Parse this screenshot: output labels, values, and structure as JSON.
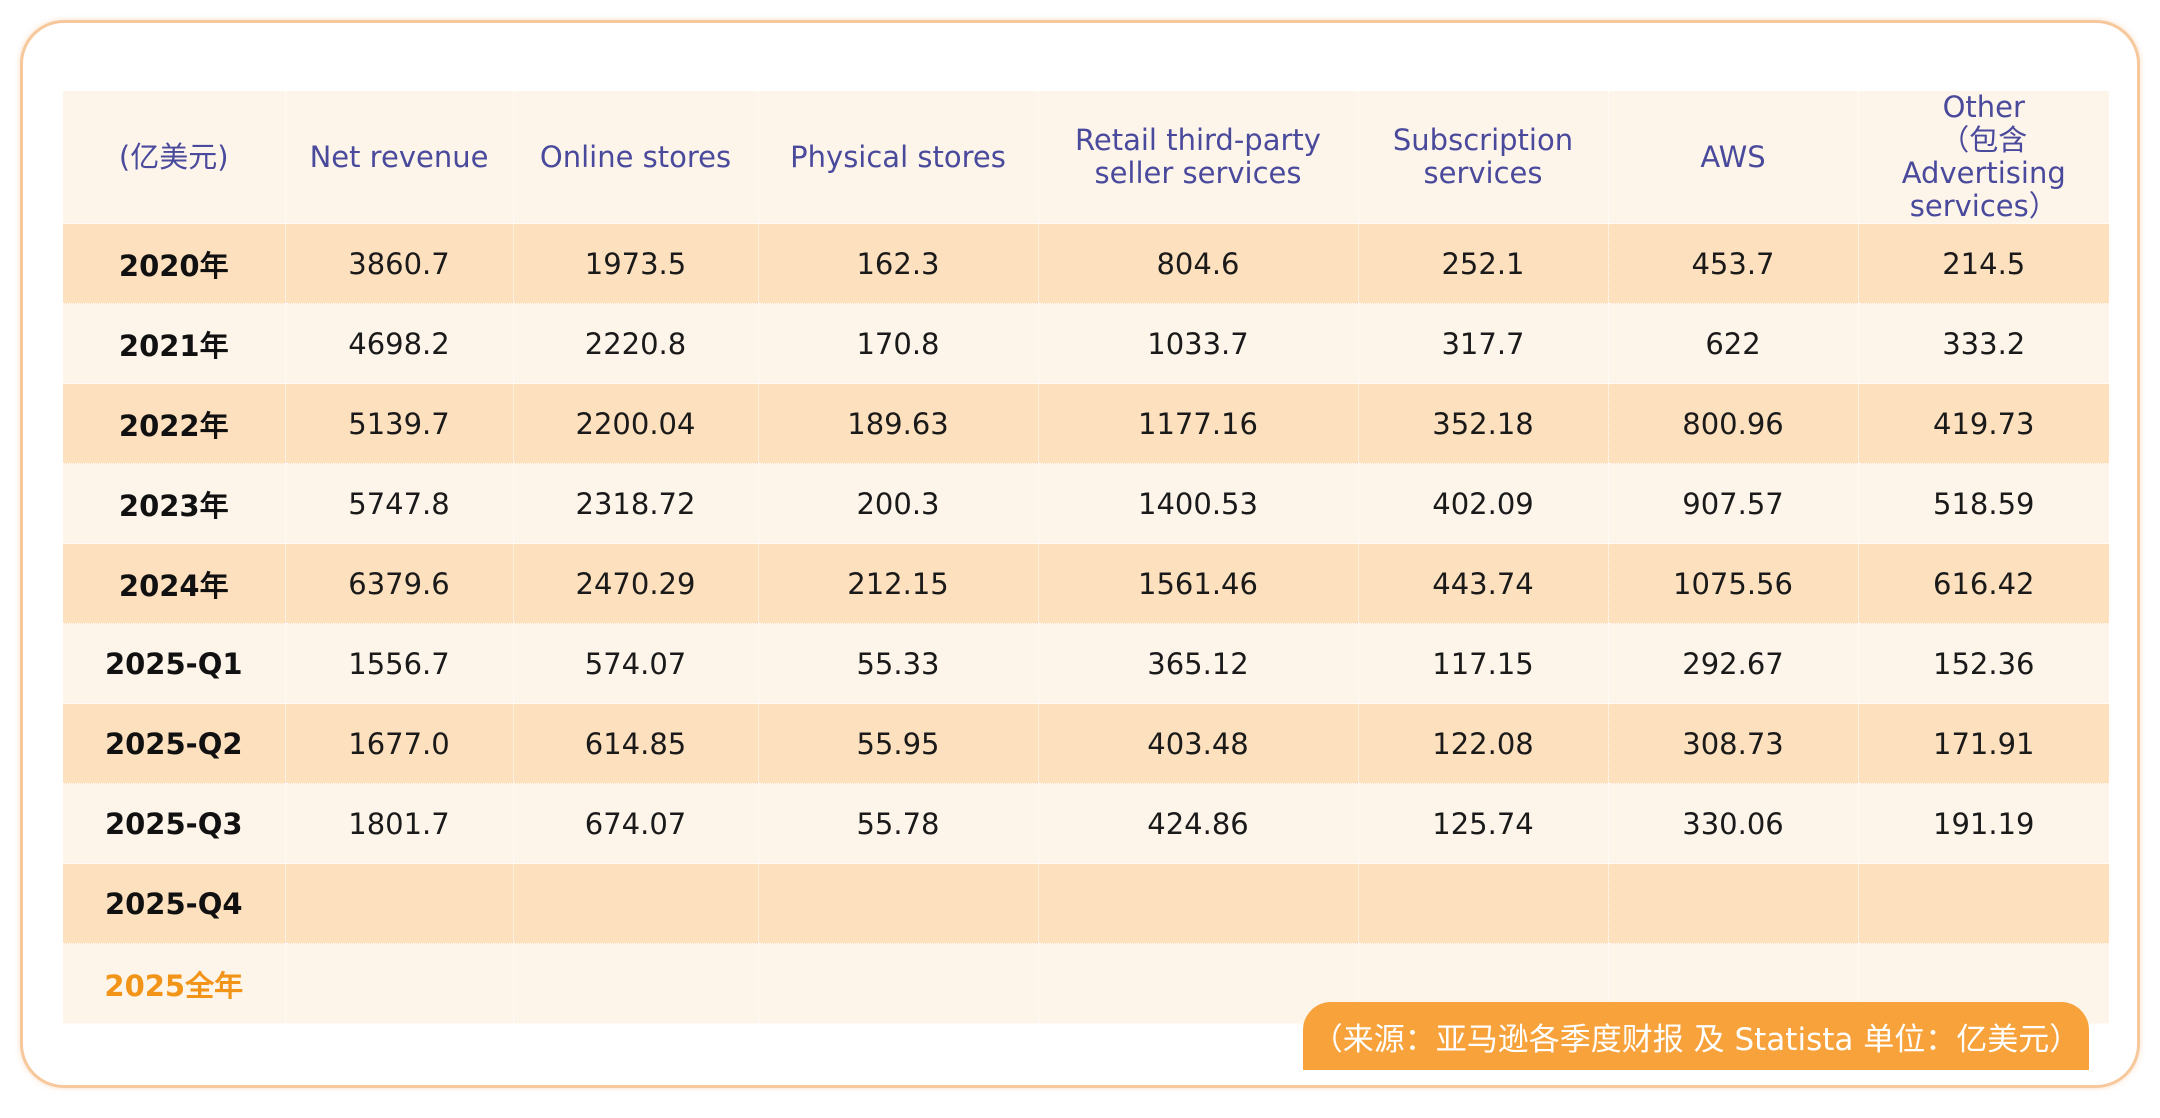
{
  "table": {
    "headers": [
      "(亿美元)",
      "Net revenue",
      "Online stores",
      "Physical stores",
      "Retail third-party\nseller services",
      "Subscription\nservices",
      "AWS",
      "Other\n（包含Advertising\nservices）"
    ],
    "rows": [
      {
        "label": "2020年",
        "values": [
          "3860.7",
          "1973.5",
          "162.3",
          "804.6",
          "252.1",
          "453.7",
          "214.5"
        ]
      },
      {
        "label": "2021年",
        "values": [
          "4698.2",
          "2220.8",
          "170.8",
          "1033.7",
          "317.7",
          "622",
          "333.2"
        ]
      },
      {
        "label": "2022年",
        "values": [
          "5139.7",
          "2200.04",
          "189.63",
          "1177.16",
          "352.18",
          "800.96",
          "419.73"
        ]
      },
      {
        "label": "2023年",
        "values": [
          "5747.8",
          "2318.72",
          "200.3",
          "1400.53",
          "402.09",
          "907.57",
          "518.59"
        ]
      },
      {
        "label": "2024年",
        "values": [
          "6379.6",
          "2470.29",
          "212.15",
          "1561.46",
          "443.74",
          "1075.56",
          "616.42"
        ]
      },
      {
        "label": "2025-Q1",
        "values": [
          "1556.7",
          "574.07",
          "55.33",
          "365.12",
          "117.15",
          "292.67",
          "152.36"
        ]
      },
      {
        "label": "2025-Q2",
        "values": [
          "1677.0",
          "614.85",
          "55.95",
          "403.48",
          "122.08",
          "308.73",
          "171.91"
        ]
      },
      {
        "label": "2025-Q3",
        "values": [
          "1801.7",
          "674.07",
          "55.78",
          "424.86",
          "125.74",
          "330.06",
          "191.19"
        ]
      },
      {
        "label": "2025-Q4",
        "values": [
          "",
          "",
          "",
          "",
          "",
          "",
          ""
        ]
      },
      {
        "label": "2025全年",
        "values": [
          "",
          "",
          "",
          "",
          "",
          "",
          ""
        ]
      }
    ]
  },
  "source_note": "（来源：亚马逊各季度财报 及 Statista 单位：亿美元）",
  "colors": {
    "header_text": "#4a4a9c",
    "row_dark": "#fde0bd",
    "row_light": "#fdf4ea",
    "highlight_label": "#f29418",
    "source_tag_bg": "#f7a23b",
    "card_border": "#f6c89c"
  }
}
